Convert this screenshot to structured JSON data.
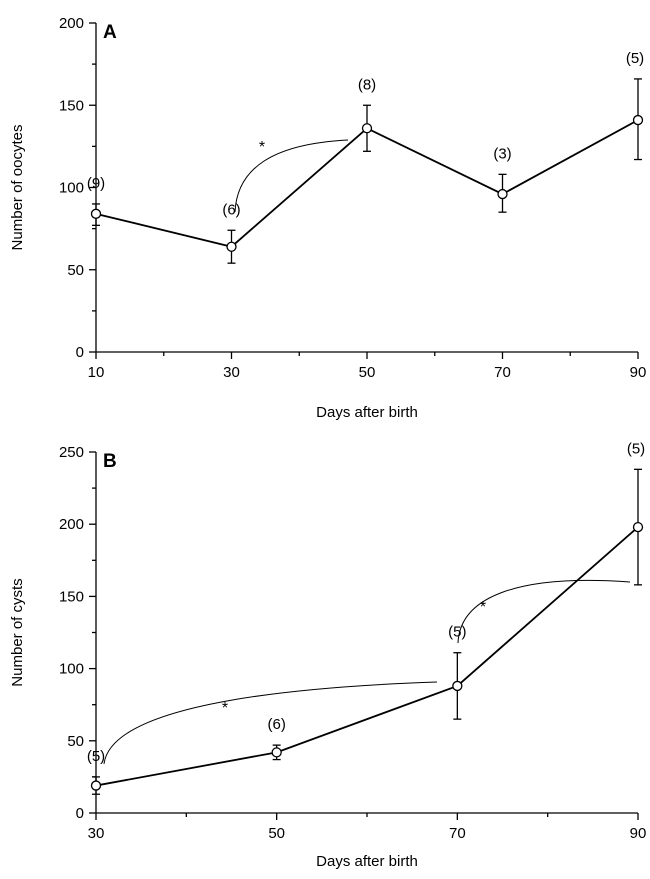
{
  "chart_data": [
    {
      "type": "line",
      "panel_label": "A",
      "xlabel": "Days after birth",
      "ylabel": "Number of oocytes",
      "xlim": [
        10,
        90
      ],
      "ylim": [
        0,
        200
      ],
      "x_ticks": [
        10,
        30,
        50,
        70,
        90
      ],
      "y_ticks": [
        0,
        50,
        100,
        150,
        200
      ],
      "points": [
        {
          "x": 10,
          "y": 84,
          "err_low": 7,
          "err_high": 6,
          "n": "(9)"
        },
        {
          "x": 30,
          "y": 64,
          "err_low": 10,
          "err_high": 10,
          "n": "(6)"
        },
        {
          "x": 50,
          "y": 136,
          "err_low": 14,
          "err_high": 14,
          "n": "(8)"
        },
        {
          "x": 70,
          "y": 96,
          "err_low": 11,
          "err_high": 12,
          "n": "(3)"
        },
        {
          "x": 90,
          "y": 141,
          "err_low": 24,
          "err_high": 25,
          "n": "(5)"
        }
      ],
      "significance": [
        {
          "from_x": 30,
          "to_x": 50,
          "label": "*"
        }
      ]
    },
    {
      "type": "line",
      "panel_label": "B",
      "xlabel": "Days after birth",
      "ylabel": "Number of cysts",
      "xlim": [
        30,
        90
      ],
      "ylim": [
        0,
        250
      ],
      "x_ticks": [
        30,
        50,
        70,
        90
      ],
      "y_ticks": [
        0,
        50,
        100,
        150,
        200,
        250
      ],
      "points": [
        {
          "x": 30,
          "y": 19,
          "err_low": 6,
          "err_high": 6,
          "n": "(5)"
        },
        {
          "x": 50,
          "y": 42,
          "err_low": 5,
          "err_high": 5,
          "n": "(6)"
        },
        {
          "x": 70,
          "y": 88,
          "err_low": 23,
          "err_high": 23,
          "n": "(5)"
        },
        {
          "x": 90,
          "y": 198,
          "err_low": 40,
          "err_high": 40,
          "n": "(5)"
        }
      ],
      "significance": [
        {
          "from_x": 30,
          "to_x": 70,
          "label": "*"
        },
        {
          "from_x": 70,
          "to_x": 90,
          "label": "*"
        }
      ]
    }
  ]
}
